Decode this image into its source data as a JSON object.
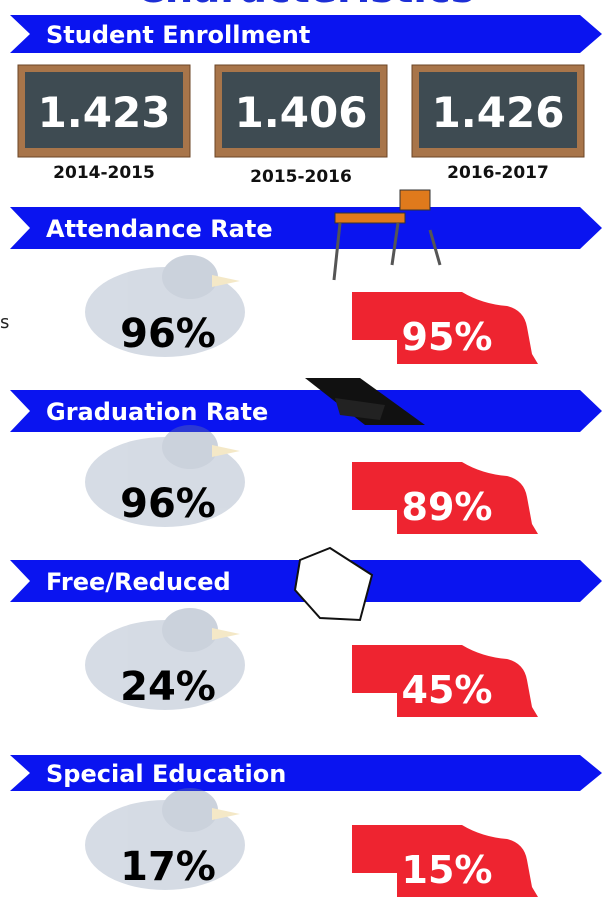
{
  "header": {
    "title": "Characteristics",
    "side_text": "s"
  },
  "enrollment": {
    "heading": "Student Enrollment",
    "boards": [
      {
        "value": "1.423",
        "year": "2014-2015"
      },
      {
        "value": "1.406",
        "year": "2015-2016"
      },
      {
        "value": "1.426",
        "year": "2016-2017"
      }
    ]
  },
  "stats": [
    {
      "heading": "Attendance Rate",
      "school": "96%",
      "state": "95%"
    },
    {
      "heading": "Graduation Rate",
      "school": "96%",
      "state": "89%"
    },
    {
      "heading": "Free/Reduced",
      "school": "24%",
      "state": "45%"
    },
    {
      "heading": "Special Education",
      "school": "17%",
      "state": "15%"
    }
  ]
}
